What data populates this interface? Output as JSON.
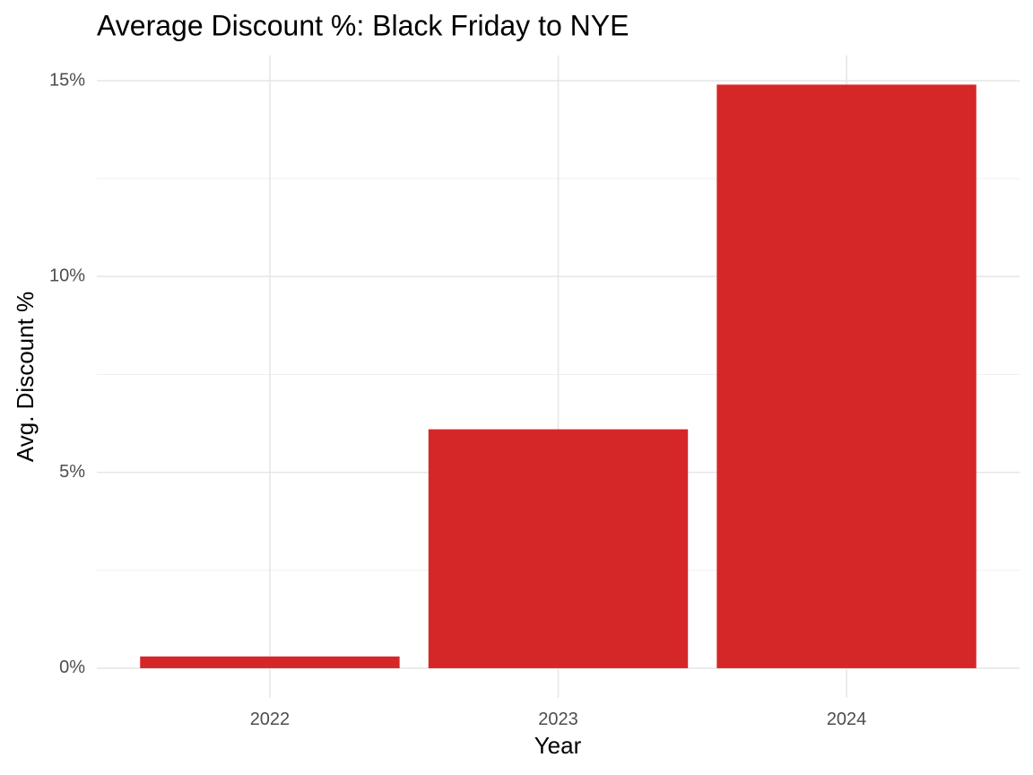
{
  "chart_data": {
    "type": "bar",
    "title": "Average Discount %: Black Friday to NYE",
    "x_label": "Year",
    "y_label": "Avg. Discount %",
    "categories": [
      "2022",
      "2023",
      "2024"
    ],
    "values": [
      0.3,
      6.1,
      14.9
    ],
    "color": "#d62728",
    "ylim": [
      -0.75,
      15.65
    ],
    "yticks": [
      {
        "value": 0,
        "label": "0%"
      },
      {
        "value": 5,
        "label": "5%"
      },
      {
        "value": 10,
        "label": "10%"
      },
      {
        "value": 15,
        "label": "15%"
      }
    ],
    "y_minor_ticks": [
      2.5,
      7.5,
      12.5
    ],
    "grid": true
  }
}
